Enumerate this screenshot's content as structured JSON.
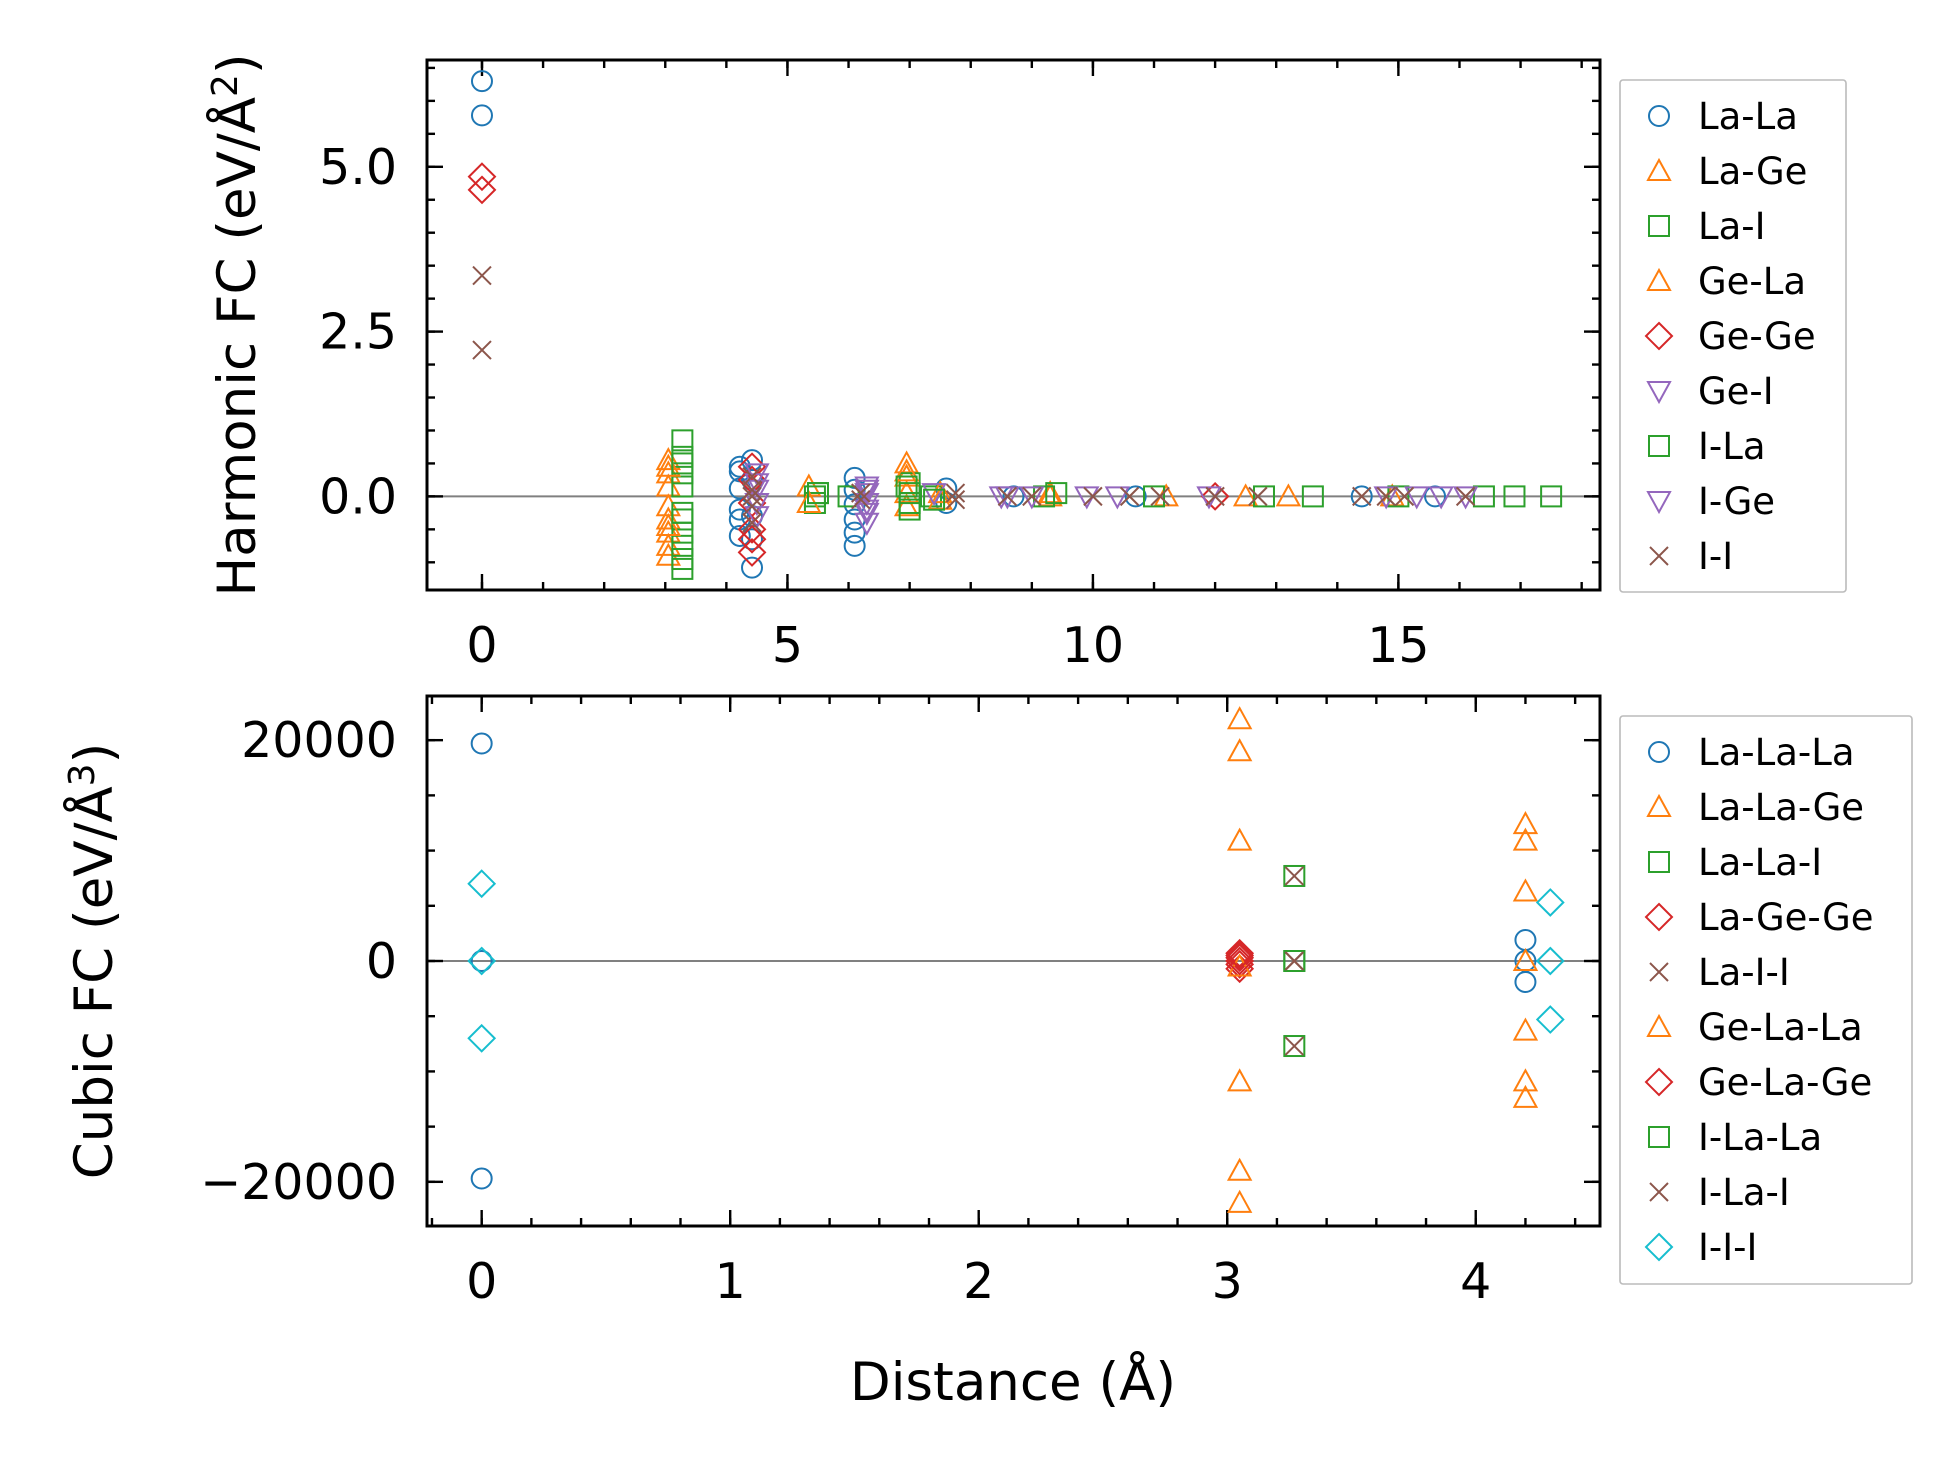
{
  "figure": {
    "xlabel": "Distance (Å)"
  },
  "chart_data": [
    {
      "type": "scatter",
      "ylabel_main": "Harmonic FC (eV/Å",
      "ylabel_sup": "2",
      "ylabel_tail": ")",
      "xlim": [
        -0.9,
        18.3
      ],
      "ylim": [
        -1.42,
        6.62
      ],
      "xticks": [
        0,
        5,
        10,
        15
      ],
      "xtick_labels": [
        "0",
        "5",
        "10",
        "15"
      ],
      "yticks": [
        0,
        2.5,
        5
      ],
      "ytick_labels": [
        "0.0",
        "2.5",
        "5.0"
      ],
      "legend": {
        "placement": "outside-right"
      },
      "series": [
        {
          "name": "La-La",
          "marker": "circle",
          "color": "#1f77b4",
          "x": [
            0,
            0,
            4.22,
            4.22,
            4.22,
            4.22,
            4.22,
            4.22,
            4.42,
            4.42,
            4.42,
            4.42,
            4.42,
            6.1,
            6.1,
            6.1,
            6.1,
            6.1,
            6.1,
            7.6,
            7.6,
            8.7,
            10.7,
            14.4,
            15.6
          ],
          "y": [
            6.3,
            5.78,
            0.45,
            0.38,
            0.12,
            -0.2,
            -0.35,
            -0.6,
            0.55,
            0.25,
            -0.3,
            -0.65,
            -1.08,
            0.28,
            0.1,
            -0.12,
            -0.35,
            -0.55,
            -0.75,
            0.12,
            -0.1,
            0,
            0,
            0,
            0
          ]
        },
        {
          "name": "La-Ge",
          "marker": "triangle-up",
          "color": "#ff7f0e",
          "x": [
            3.05,
            3.05,
            3.05,
            3.05,
            3.05,
            3.05,
            3.05,
            3.05,
            5.35,
            6.95,
            6.95,
            6.95,
            6.95,
            9.3,
            9.3,
            11.2,
            12.5,
            13.2,
            14.9
          ],
          "y": [
            0.55,
            0.35,
            0.15,
            -0.15,
            -0.35,
            -0.55,
            -0.75,
            -0.9,
            0.15,
            0.5,
            0.3,
            0.05,
            -0.15,
            0,
            0.05,
            0,
            0,
            0,
            0
          ]
        },
        {
          "name": "La-I",
          "marker": "square",
          "color": "#2ca02c",
          "x": [
            3.28,
            3.28,
            3.28,
            3.28,
            3.28,
            3.28,
            3.28,
            3.28,
            3.28,
            5.45,
            5.45,
            5.5,
            6.0,
            7.0,
            7.0,
            7.0,
            7.0,
            7.35,
            9.2,
            9.4,
            11.0,
            12.8,
            13.6,
            15.0,
            16.4,
            16.9,
            17.5
          ],
          "y": [
            0.85,
            0.6,
            0.35,
            0.15,
            -0.35,
            -0.55,
            -0.75,
            -0.95,
            -1.1,
            0,
            -0.1,
            0.05,
            0,
            0.2,
            0.05,
            -0.1,
            -0.2,
            0,
            0,
            0.05,
            0,
            0,
            0,
            0,
            0,
            0,
            0
          ]
        },
        {
          "name": "Ge-La",
          "marker": "triangle-up",
          "color": "#ff7f0e",
          "x": [
            3.05,
            3.05,
            5.35,
            6.95,
            7.5,
            7.5
          ],
          "y": [
            0.45,
            -0.45,
            -0.1,
            0.38,
            0.05,
            -0.05
          ]
        },
        {
          "name": "Ge-Ge",
          "marker": "diamond",
          "color": "#d62728",
          "x": [
            0,
            0,
            4.42,
            4.42,
            4.42,
            4.42,
            4.42,
            4.42,
            12.0
          ],
          "y": [
            4.85,
            4.65,
            0.45,
            0.25,
            -0.1,
            -0.5,
            -0.65,
            -0.85,
            0
          ]
        },
        {
          "name": "Ge-I",
          "marker": "triangle-down",
          "color": "#9467bd",
          "x": [
            4.5,
            4.5,
            4.5,
            4.5,
            6.3,
            6.3,
            6.3,
            6.3,
            6.3,
            7.4,
            8.5,
            9.0,
            10.4,
            11.9,
            14.8,
            15.3,
            15.7,
            16.1
          ],
          "y": [
            0.35,
            0.1,
            -0.1,
            -0.3,
            0.15,
            0.05,
            -0.1,
            -0.25,
            -0.4,
            0.05,
            0,
            0,
            0,
            0,
            0,
            0,
            0,
            0
          ]
        },
        {
          "name": "I-La",
          "marker": "square",
          "color": "#2ca02c",
          "x": [
            3.28,
            3.28,
            5.5,
            6.95,
            7.4
          ],
          "y": [
            0.5,
            -0.25,
            0.05,
            0.15,
            -0.05
          ]
        },
        {
          "name": "I-Ge",
          "marker": "triangle-down",
          "color": "#9467bd",
          "x": [
            4.5,
            6.3,
            6.3,
            8.6,
            9.9
          ],
          "y": [
            0.2,
            0.1,
            -0.2,
            0,
            0
          ]
        },
        {
          "name": "I-I",
          "marker": "x",
          "color": "#8c564b",
          "x": [
            0,
            0,
            4.42,
            4.42,
            4.42,
            4.42,
            4.42,
            6.2,
            6.2,
            7.75,
            7.75,
            8.6,
            9.0,
            10.0,
            10.6,
            11.1,
            12.0,
            12.7,
            14.4,
            14.8,
            15.1,
            16.1
          ],
          "y": [
            3.35,
            2.22,
            0.3,
            0.1,
            0,
            -0.15,
            -0.4,
            0.05,
            -0.05,
            0.05,
            -0.05,
            0,
            0,
            0,
            0,
            0,
            0,
            0,
            0,
            0,
            0,
            0
          ]
        }
      ]
    },
    {
      "type": "scatter",
      "ylabel_main": "Cubic FC (eV/Å",
      "ylabel_sup": "3",
      "ylabel_tail": ")",
      "xlim": [
        -0.22,
        4.5
      ],
      "ylim": [
        -24000,
        24000
      ],
      "xticks": [
        0,
        1,
        2,
        3,
        4
      ],
      "xtick_labels": [
        "0",
        "1",
        "2",
        "3",
        "4"
      ],
      "yticks": [
        -20000,
        0,
        20000
      ],
      "ytick_labels": [
        "−20000",
        "0",
        "20000"
      ],
      "legend": {
        "placement": "outside-right"
      },
      "series": [
        {
          "name": "La-La-La",
          "marker": "circle",
          "color": "#1f77b4",
          "x": [
            0,
            0,
            0,
            4.2,
            4.2,
            4.2
          ],
          "y": [
            19700,
            0,
            -19700,
            1900,
            0,
            -1900
          ]
        },
        {
          "name": "La-La-Ge",
          "marker": "triangle-up",
          "color": "#ff7f0e",
          "x": [
            3.05,
            3.05,
            3.05,
            3.05,
            3.05,
            3.05,
            4.2,
            4.2,
            4.2,
            4.2,
            4.2,
            4.2
          ],
          "y": [
            21900,
            19000,
            10900,
            -10900,
            -19000,
            -21900,
            12400,
            10900,
            6300,
            -6300,
            -10900,
            -12400
          ]
        },
        {
          "name": "La-La-I",
          "marker": "square",
          "color": "#2ca02c",
          "x": [
            3.27,
            3.27,
            3.27
          ],
          "y": [
            7700,
            0,
            -7700
          ]
        },
        {
          "name": "La-Ge-Ge",
          "marker": "diamond",
          "color": "#d62728",
          "x": [
            3.05,
            3.05,
            3.05,
            3.05
          ],
          "y": [
            700,
            300,
            -300,
            -700
          ]
        },
        {
          "name": "La-I-I",
          "marker": "x",
          "color": "#8c564b",
          "x": [
            3.27,
            3.27,
            3.27
          ],
          "y": [
            7700,
            0,
            -7700
          ]
        },
        {
          "name": "Ge-La-La",
          "marker": "triangle-up",
          "color": "#ff7f0e",
          "x": [
            3.05,
            4.2
          ],
          "y": [
            -500,
            0
          ]
        },
        {
          "name": "Ge-La-Ge",
          "marker": "diamond",
          "color": "#d62728",
          "x": [
            3.05,
            3.05
          ],
          "y": [
            500,
            0
          ]
        },
        {
          "name": "I-La-La",
          "marker": "square",
          "color": "#2ca02c",
          "x": [
            3.27
          ],
          "y": [
            0
          ]
        },
        {
          "name": "I-La-I",
          "marker": "x",
          "color": "#8c564b",
          "x": [
            3.27
          ],
          "y": [
            0
          ]
        },
        {
          "name": "I-I-I",
          "marker": "diamond",
          "color": "#17becf",
          "x": [
            0,
            0,
            0,
            4.3,
            4.3,
            4.3
          ],
          "y": [
            7000,
            0,
            -7000,
            5300,
            0,
            -5300
          ]
        }
      ]
    }
  ]
}
